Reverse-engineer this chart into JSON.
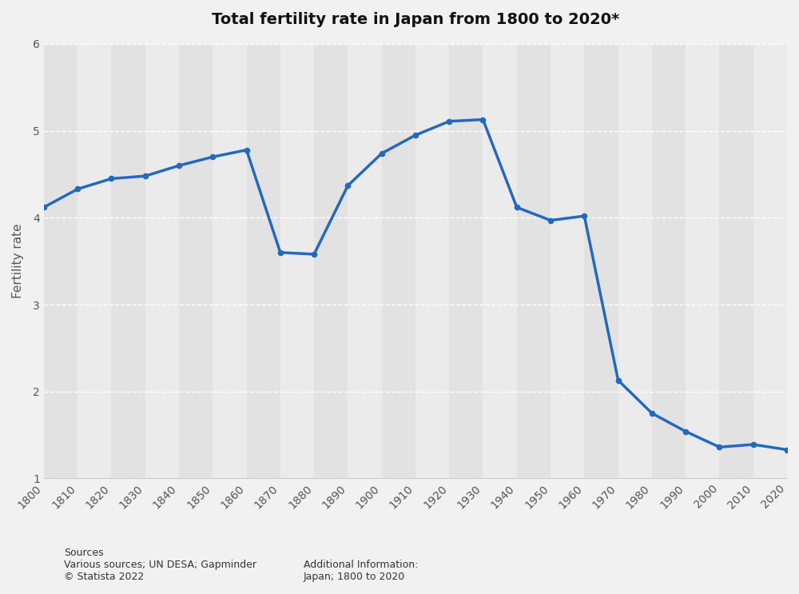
{
  "title": "Total fertility rate in Japan from 1800 to 2020*",
  "ylabel": "Fertility rate",
  "line_color": "#2369bd",
  "line_width": 2.5,
  "marker": "o",
  "marker_size": 4.5,
  "background_color": "#f1f1f1",
  "plot_bg_color": "#f1f1f1",
  "ylim": [
    1,
    6
  ],
  "yticks": [
    1,
    2,
    3,
    4,
    5,
    6
  ],
  "source_text": "Sources\nVarious sources; UN DESA; Gapminder\n© Statista 2022",
  "additional_text": "Additional Information:\nJapan; 1800 to 2020",
  "band_colors": [
    "#e2e2e2",
    "#ebebeb"
  ],
  "years": [
    1800,
    1810,
    1820,
    1830,
    1840,
    1850,
    1860,
    1870,
    1880,
    1890,
    1900,
    1910,
    1920,
    1930,
    1940,
    1950,
    1960,
    1970,
    1980,
    1990,
    2000,
    2010,
    2020
  ],
  "values": [
    4.12,
    4.33,
    4.45,
    4.48,
    4.6,
    4.7,
    4.78,
    3.6,
    3.58,
    4.37,
    4.74,
    4.95,
    5.11,
    5.13,
    4.12,
    3.97,
    4.02,
    2.13,
    1.75,
    1.54,
    1.36,
    1.39,
    1.33
  ]
}
